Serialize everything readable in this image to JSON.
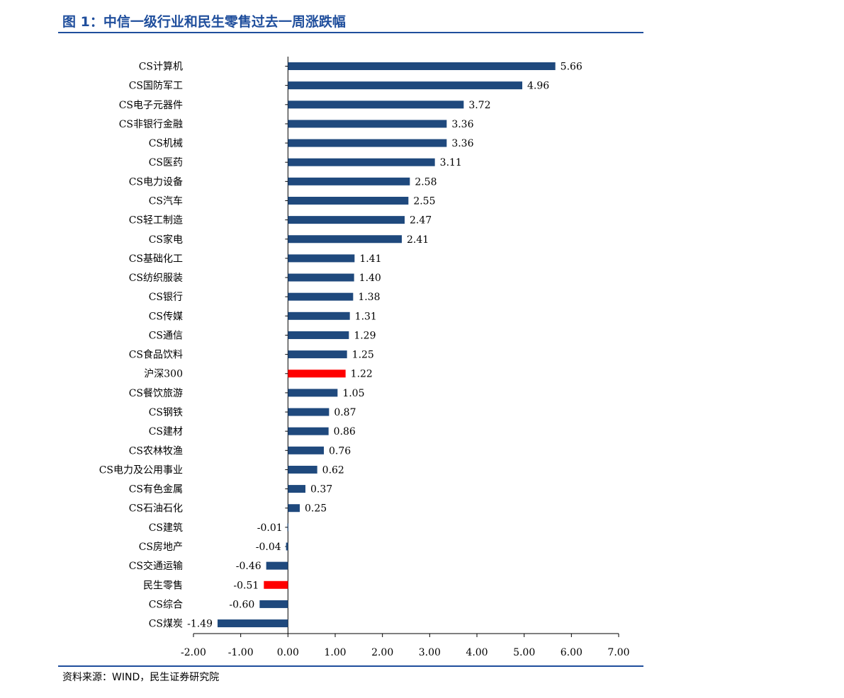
{
  "title": "图 1：中信一级行业和民生零售过去一周涨跌幅",
  "source": "资料来源：WIND，民生证券研究院",
  "colors": {
    "default_bar": "#1f497d",
    "highlight_bar": "#ff0000",
    "rule": "#1f4e9c",
    "title": "#1f4e9c"
  },
  "chart_data": {
    "type": "bar",
    "orientation": "horizontal",
    "title": "",
    "xlabel": "",
    "ylabel": "",
    "xlim": [
      -2,
      7
    ],
    "xticks": [
      -2,
      -1,
      0,
      1,
      2,
      3,
      4,
      5,
      6,
      7
    ],
    "tick_labels": [
      "-2.00",
      "-1.00",
      "0.00",
      "1.00",
      "2.00",
      "3.00",
      "4.00",
      "5.00",
      "6.00",
      "7.00"
    ],
    "grid": false,
    "legend": "none",
    "categories": [
      "CS计算机",
      "CS国防军工",
      "CS电子元器件",
      "CS非银行金融",
      "CS机械",
      "CS医药",
      "CS电力设备",
      "CS汽车",
      "CS轻工制造",
      "CS家电",
      "CS基础化工",
      "CS纺织服装",
      "CS银行",
      "CS传媒",
      "CS通信",
      "CS食品饮料",
      "沪深300",
      "CS餐饮旅游",
      "CS钢铁",
      "CS建材",
      "CS农林牧渔",
      "CS电力及公用事业",
      "CS有色金属",
      "CS石油石化",
      "CS建筑",
      "CS房地产",
      "CS交通运输",
      "民生零售",
      "CS综合",
      "CS煤炭"
    ],
    "values": [
      5.66,
      4.96,
      3.72,
      3.36,
      3.36,
      3.11,
      2.58,
      2.55,
      2.47,
      2.41,
      1.41,
      1.4,
      1.38,
      1.31,
      1.29,
      1.25,
      1.22,
      1.05,
      0.87,
      0.86,
      0.76,
      0.62,
      0.37,
      0.25,
      -0.01,
      -0.04,
      -0.46,
      -0.51,
      -0.6,
      -1.49
    ],
    "value_labels": [
      "5.66",
      "4.96",
      "3.72",
      "3.36",
      "3.36",
      "3.11",
      "2.58",
      "2.55",
      "2.47",
      "2.41",
      "1.41",
      "1.40",
      "1.38",
      "1.31",
      "1.29",
      "1.25",
      "1.22",
      "1.05",
      "0.87",
      "0.86",
      "0.76",
      "0.62",
      "0.37",
      "0.25",
      "-0.01",
      "-0.04",
      "-0.46",
      "-0.51",
      "-0.60",
      "-1.49"
    ],
    "highlighted": [
      "沪深300",
      "民生零售"
    ]
  }
}
